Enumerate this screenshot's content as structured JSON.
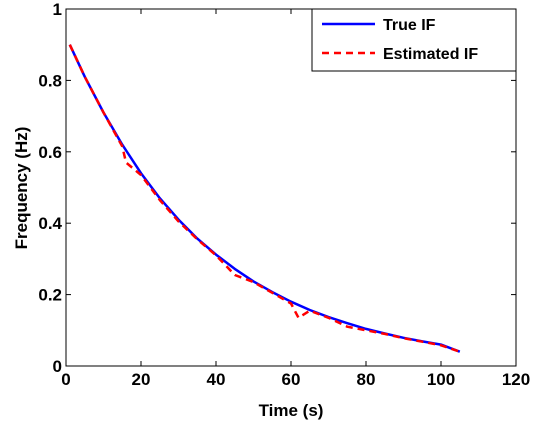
{
  "chart_data": {
    "type": "line",
    "title": "",
    "xlabel": "Time (s)",
    "ylabel": "Frequency (Hz)",
    "xlim": [
      0,
      120
    ],
    "ylim": [
      0,
      1
    ],
    "xticks": [
      0,
      20,
      40,
      60,
      80,
      100,
      120
    ],
    "yticks": [
      0,
      0.2,
      0.4,
      0.6,
      0.8,
      1
    ],
    "ytick_labels": [
      "0",
      "0.2",
      "0.4",
      "0.6",
      "0.8",
      "1"
    ],
    "grid": false,
    "legend_position": "top-right",
    "series": [
      {
        "name": "True IF",
        "color": "#0000ff",
        "style": "solid",
        "x": [
          1,
          5,
          10,
          15,
          20,
          25,
          30,
          35,
          40,
          45,
          50,
          55,
          60,
          65,
          70,
          75,
          80,
          85,
          90,
          95,
          100,
          105
        ],
        "y": [
          0.9,
          0.81,
          0.71,
          0.62,
          0.54,
          0.47,
          0.41,
          0.357,
          0.312,
          0.272,
          0.237,
          0.207,
          0.18,
          0.157,
          0.137,
          0.12,
          0.104,
          0.091,
          0.079,
          0.069,
          0.06,
          0.04
        ]
      },
      {
        "name": "Estimated IF",
        "color": "#ff0000",
        "style": "dashed",
        "x": [
          1,
          5,
          10,
          15,
          16,
          20,
          25,
          30,
          35,
          40,
          45,
          50,
          55,
          60,
          62,
          65,
          70,
          75,
          80,
          85,
          90,
          95,
          100,
          105
        ],
        "y": [
          0.9,
          0.81,
          0.71,
          0.615,
          0.57,
          0.535,
          0.465,
          0.405,
          0.355,
          0.31,
          0.255,
          0.235,
          0.205,
          0.175,
          0.135,
          0.155,
          0.135,
          0.11,
          0.1,
          0.09,
          0.078,
          0.068,
          0.058,
          0.04
        ]
      }
    ]
  }
}
